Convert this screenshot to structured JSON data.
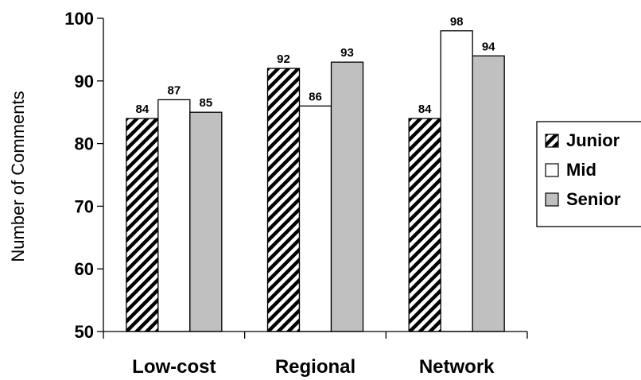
{
  "chart_data": {
    "type": "bar",
    "title": "",
    "xlabel": "",
    "ylabel": "Number of Comments",
    "categories": [
      "Low-cost",
      "Regional",
      "Network"
    ],
    "series": [
      {
        "name": "Junior",
        "values": [
          84,
          92,
          84
        ],
        "pattern": "diagonal-hatch",
        "color": "#000000"
      },
      {
        "name": "Mid",
        "values": [
          87,
          86,
          98
        ],
        "pattern": "solid",
        "color": "#ffffff"
      },
      {
        "name": "Senior",
        "values": [
          85,
          93,
          94
        ],
        "pattern": "solid",
        "color": "#c0c0c0"
      }
    ],
    "ylim": [
      50,
      100
    ],
    "yticks": [
      50,
      60,
      70,
      80,
      90,
      100
    ],
    "grid": false,
    "legend_position": "right"
  }
}
